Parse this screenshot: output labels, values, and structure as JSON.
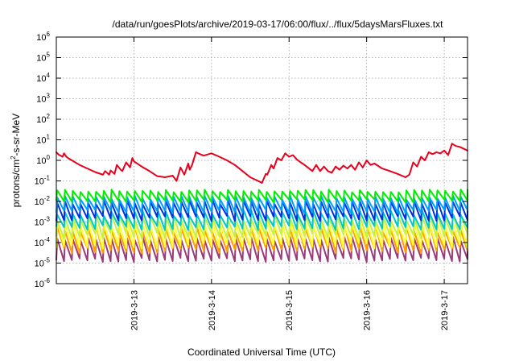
{
  "chart_data": {
    "type": "line",
    "title": "/data/run/goesPlots/archive/2019-03-17/06:00/flux/../flux/5daysMarsFluxes.txt",
    "xlabel": "Coordinated Universal Time (UTC)",
    "ylabel_pre": "protons/cm",
    "ylabel_sup": "2",
    "ylabel_post": "-s-sr-MeV",
    "yscale": "log",
    "ylim": [
      1e-06,
      1000000.0
    ],
    "xlim_days": [
      12.0,
      17.3
    ],
    "grid": true,
    "x_ticks": [
      {
        "day": 13,
        "label": "2019-3-13"
      },
      {
        "day": 14,
        "label": "2019-3-14"
      },
      {
        "day": 15,
        "label": "2019-3-15"
      },
      {
        "day": 16,
        "label": "2019-3-16"
      },
      {
        "day": 17,
        "label": "2019-3-17"
      }
    ],
    "y_ticks": [
      {
        "exp": -6,
        "base": "10",
        "sup": "-6"
      },
      {
        "exp": -5,
        "base": "10",
        "sup": "-5"
      },
      {
        "exp": -4,
        "base": "10",
        "sup": "-4"
      },
      {
        "exp": -3,
        "base": "10",
        "sup": "-3"
      },
      {
        "exp": -2,
        "base": "10",
        "sup": "-2"
      },
      {
        "exp": -1,
        "base": "10",
        "sup": "-1"
      },
      {
        "exp": 0,
        "base": "10",
        "sup": "0"
      },
      {
        "exp": 1,
        "base": "10",
        "sup": "1"
      },
      {
        "exp": 2,
        "base": "10",
        "sup": "2"
      },
      {
        "exp": 3,
        "base": "10",
        "sup": "3"
      },
      {
        "exp": 4,
        "base": "10",
        "sup": "4"
      },
      {
        "exp": 5,
        "base": "10",
        "sup": "5"
      },
      {
        "exp": 6,
        "base": "10",
        "sup": "6"
      }
    ],
    "series": [
      {
        "color": "#e8001c",
        "x": [
          12.0,
          12.03,
          12.08,
          12.1,
          12.13,
          12.15,
          12.2,
          12.3,
          12.4,
          12.5,
          12.6,
          12.63,
          12.68,
          12.7,
          12.75,
          12.78,
          12.83,
          12.85,
          12.9,
          12.95,
          12.98,
          13.0,
          13.1,
          13.2,
          13.3,
          13.35,
          13.4,
          13.5,
          13.55,
          13.6,
          13.65,
          13.7,
          13.72,
          13.75,
          13.8,
          13.85,
          13.9,
          14.0,
          14.1,
          14.2,
          14.3,
          14.4,
          14.5,
          14.6,
          14.65,
          14.7,
          14.72,
          14.77,
          14.8,
          14.85,
          14.9,
          14.95,
          15.0,
          15.05,
          15.1,
          15.15,
          15.2,
          15.3,
          15.35,
          15.4,
          15.45,
          15.5,
          15.55,
          15.6,
          15.65,
          15.7,
          15.75,
          15.8,
          15.85,
          15.9,
          15.95,
          16.0,
          16.05,
          16.1,
          16.2,
          16.3,
          16.4,
          16.5,
          16.55,
          16.6,
          16.65,
          16.7,
          16.75,
          16.8,
          16.85,
          16.9,
          16.95,
          17.0,
          17.05,
          17.1,
          17.15,
          17.2,
          17.3
        ],
        "y": [
          2.5,
          1.9,
          1.5,
          2.2,
          1.5,
          1.3,
          1.0,
          0.6,
          0.4,
          0.27,
          0.2,
          0.3,
          0.2,
          0.32,
          0.22,
          0.6,
          0.35,
          0.3,
          0.8,
          0.45,
          1.3,
          0.9,
          0.5,
          0.3,
          0.17,
          0.16,
          0.15,
          0.18,
          0.1,
          0.45,
          0.2,
          0.7,
          0.35,
          0.6,
          2.5,
          2.0,
          1.7,
          2.2,
          1.5,
          1.0,
          0.6,
          0.3,
          0.15,
          0.1,
          0.08,
          0.22,
          0.2,
          0.6,
          0.4,
          1.3,
          1.0,
          2.2,
          1.5,
          1.8,
          1.1,
          0.8,
          0.6,
          0.3,
          0.6,
          0.3,
          0.5,
          0.3,
          0.25,
          0.5,
          0.35,
          0.55,
          0.4,
          0.6,
          0.35,
          0.8,
          0.45,
          1.0,
          0.6,
          0.7,
          0.4,
          0.3,
          0.22,
          0.15,
          0.2,
          0.8,
          0.5,
          1.5,
          1.0,
          2.5,
          2.0,
          2.5,
          2.2,
          3.0,
          1.8,
          6.5,
          5.0,
          4.5,
          3.0
        ]
      },
      {
        "color": "#00ee00",
        "x_start": 12.0,
        "x_end": 17.3,
        "period": 0.1,
        "peak": [
          0.028,
          0.038
        ],
        "trough": [
          0.009,
          0.013
        ]
      },
      {
        "color": "#00a0ff",
        "x_start": 12.0,
        "x_end": 17.3,
        "period": 0.1,
        "peak": [
          0.012,
          0.02
        ],
        "trough": [
          0.0025,
          0.004
        ]
      },
      {
        "color": "#0030e0",
        "x_start": 12.0,
        "x_end": 17.3,
        "period": 0.1,
        "peak": [
          0.007,
          0.012
        ],
        "trough": [
          0.0011,
          0.002
        ]
      },
      {
        "color": "#00c8c8",
        "x_start": 12.0,
        "x_end": 17.3,
        "period": 0.1,
        "peak": [
          0.002,
          0.004
        ],
        "trough": [
          0.0004,
          0.0007
        ]
      },
      {
        "color": "#c8f040",
        "x_start": 12.0,
        "x_end": 17.3,
        "period": 0.1,
        "peak": [
          0.0012,
          0.0025
        ],
        "trough": [
          0.00015,
          0.0003
        ]
      },
      {
        "color": "#ffff33",
        "x_start": 12.0,
        "x_end": 17.3,
        "period": 0.1,
        "peak": [
          0.0006,
          0.0012
        ],
        "trough": [
          5e-05,
          0.0001
        ]
      },
      {
        "color": "#ff9f00",
        "x_start": 12.0,
        "x_end": 17.3,
        "period": 0.1,
        "peak": [
          0.0003,
          0.0008
        ],
        "trough": [
          3e-05,
          6e-05
        ]
      },
      {
        "color": "#9a3a7a",
        "x_start": 12.0,
        "x_end": 17.3,
        "period": 0.1,
        "peak": [
          0.00012,
          0.0002
        ],
        "trough": [
          1.1e-05,
          1.8e-05
        ]
      }
    ]
  }
}
